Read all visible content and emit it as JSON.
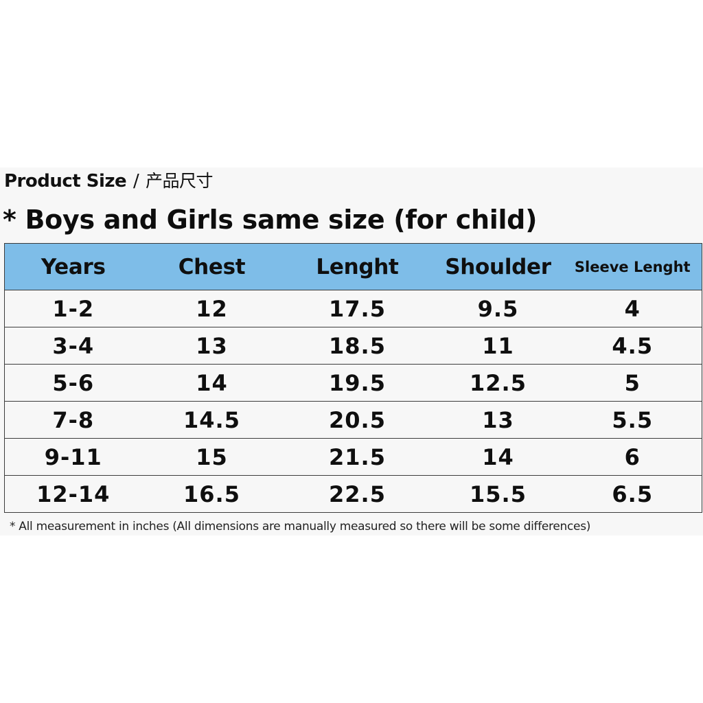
{
  "heading": {
    "product_size": "Product Size",
    "separator": "/",
    "product_size_cn": "产品尺寸"
  },
  "subtitle": "* Boys and Girls same size (for child)",
  "table": {
    "headers": [
      "Years",
      "Chest",
      "Lenght",
      "Shoulder",
      "Sleeve Lenght"
    ],
    "rows": [
      [
        "1-2",
        "12",
        "17.5",
        "9.5",
        "4"
      ],
      [
        "3-4",
        "13",
        "18.5",
        "11",
        "4.5"
      ],
      [
        "5-6",
        "14",
        "19.5",
        "12.5",
        "5"
      ],
      [
        "7-8",
        "14.5",
        "20.5",
        "13",
        "5.5"
      ],
      [
        "9-11",
        "15",
        "21.5",
        "14",
        "6"
      ],
      [
        "12-14",
        "16.5",
        "22.5",
        "15.5",
        "6.5"
      ]
    ],
    "header_color": "#7ebde8"
  },
  "footnote": "* All measurement in inches (All dimensions are manually measured so there will be some differences)"
}
